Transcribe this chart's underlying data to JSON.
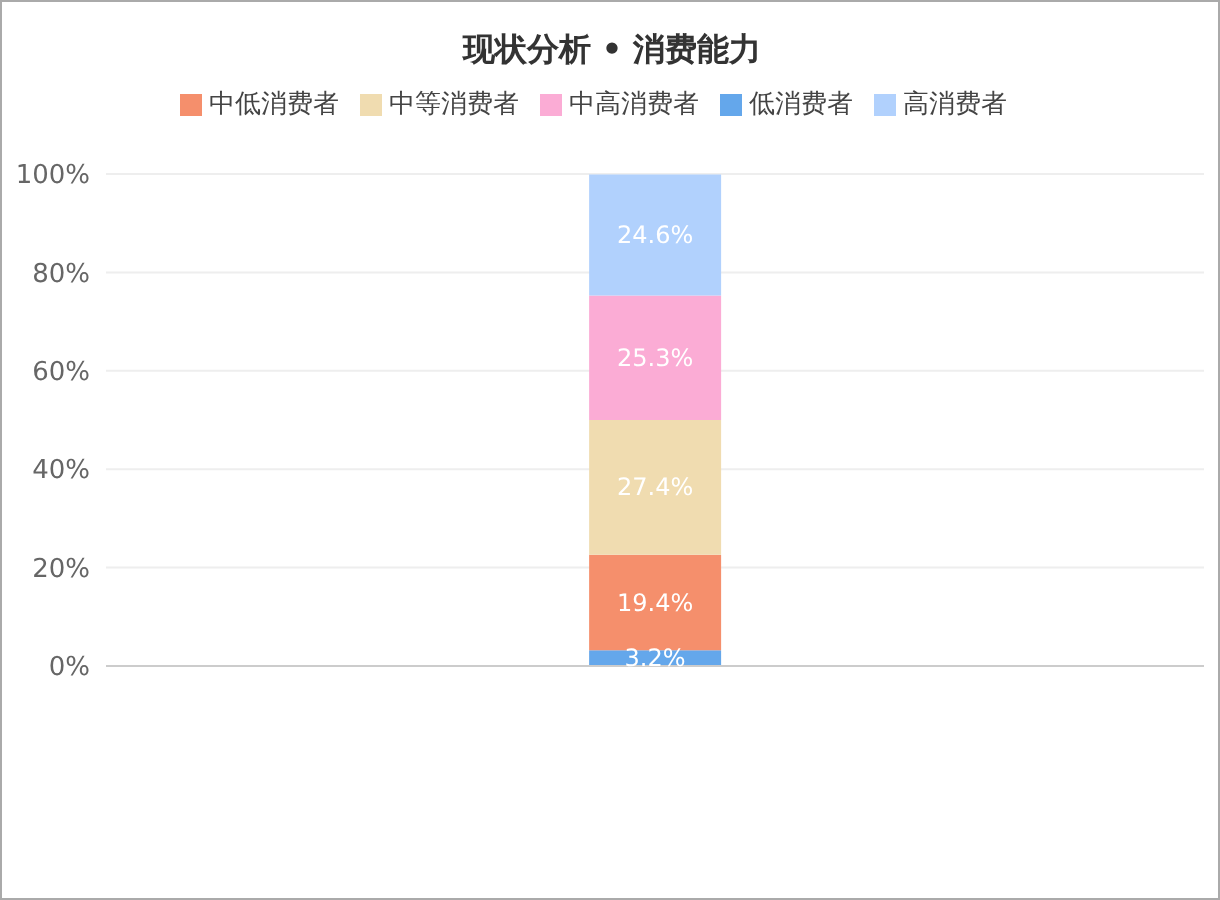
{
  "chart_data": {
    "type": "bar",
    "title": "现状分析 • 消费能力",
    "categories": [
      null
    ],
    "stacked": true,
    "series": [
      {
        "name": "低消费者",
        "color": "#64a7eb",
        "values": [
          3.2
        ],
        "value_labels": [
          "3.2%"
        ]
      },
      {
        "name": "中低消费者",
        "color": "#f58f6c",
        "values": [
          19.4
        ],
        "value_labels": [
          "19.4%"
        ]
      },
      {
        "name": "中等消费者",
        "color": "#f0dcb0",
        "values": [
          27.4
        ],
        "value_labels": [
          "27.4%"
        ]
      },
      {
        "name": "中高消费者",
        "color": "#fbacd5",
        "values": [
          25.3
        ],
        "value_labels": [
          "25.3%"
        ]
      },
      {
        "name": "高消费者",
        "color": "#b1d1fd",
        "values": [
          24.6
        ],
        "value_labels": [
          "24.6%"
        ]
      }
    ],
    "ylim": [
      0,
      100
    ],
    "yticks": [
      {
        "value": 0,
        "label": "0%"
      },
      {
        "value": 20,
        "label": "20%"
      },
      {
        "value": 40,
        "label": "40%"
      },
      {
        "value": 60,
        "label": "60%"
      },
      {
        "value": 80,
        "label": "80%"
      },
      {
        "value": 100,
        "label": "100%"
      }
    ],
    "grid": "y",
    "legend": "top"
  }
}
